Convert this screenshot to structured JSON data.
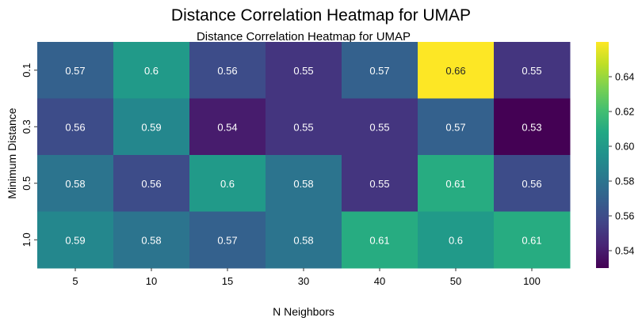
{
  "figure": {
    "suptitle": "Distance Correlation Heatmap for UMAP"
  },
  "chart_data": {
    "type": "heatmap",
    "title": "Distance Correlation Heatmap for UMAP",
    "xlabel": "N Neighbors",
    "ylabel": "Minimum Distance",
    "x_categories": [
      "5",
      "10",
      "15",
      "30",
      "40",
      "50",
      "100"
    ],
    "y_categories": [
      "0.1",
      "0.3",
      "0.5",
      "1.0"
    ],
    "values": [
      [
        0.57,
        0.6,
        0.56,
        0.55,
        0.57,
        0.66,
        0.55
      ],
      [
        0.56,
        0.59,
        0.54,
        0.55,
        0.55,
        0.57,
        0.53
      ],
      [
        0.58,
        0.56,
        0.6,
        0.58,
        0.55,
        0.61,
        0.56
      ],
      [
        0.59,
        0.58,
        0.57,
        0.58,
        0.61,
        0.6,
        0.61
      ]
    ],
    "colormap": "viridis",
    "colorbar": {
      "vmin": 0.53,
      "vmax": 0.66,
      "ticks": [
        0.54,
        0.56,
        0.58,
        0.6,
        0.62,
        0.64
      ],
      "tick_labels": [
        "0.54",
        "0.56",
        "0.58",
        "0.60",
        "0.62",
        "0.64"
      ]
    },
    "annotations": true
  }
}
